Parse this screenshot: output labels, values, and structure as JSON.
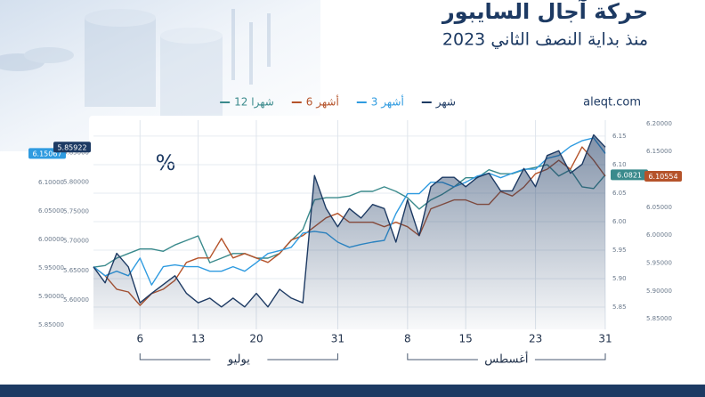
{
  "chart_data": {
    "type": "line",
    "title": "حركة آجال السايبور",
    "subtitle": "منذ بداية النصف الثاني 2023",
    "source": "aleqt.com",
    "unit_label": "%",
    "month_labels": [
      "يوليو",
      "أغسطس"
    ],
    "categories": [
      null,
      null,
      null,
      null,
      "6",
      null,
      null,
      null,
      null,
      "13",
      null,
      null,
      null,
      null,
      "20",
      null,
      null,
      null,
      null,
      null,
      null,
      "31",
      null,
      null,
      null,
      null,
      null,
      "8",
      null,
      null,
      null,
      null,
      "15",
      null,
      null,
      null,
      null,
      null,
      "23",
      null,
      null,
      null,
      null,
      null,
      "31"
    ],
    "axes": {
      "left_outer": {
        "ylim": [
          5.842,
          6.209
        ],
        "yticks": [
          {
            "value": 5.85,
            "label": "5.85000"
          },
          {
            "value": 5.9,
            "label": "5.90000"
          },
          {
            "value": 5.95,
            "label": "5.95000"
          },
          {
            "value": 6.0,
            "label": "6.00000"
          },
          {
            "value": 6.05,
            "label": "6.05000"
          },
          {
            "value": 6.1,
            "label": "6.10000"
          }
        ]
      },
      "left_inner": {
        "ylim": [
          5.55,
          5.905
        ],
        "yticks": [
          {
            "value": 5.6,
            "label": "5.60000"
          },
          {
            "value": 5.65,
            "label": "5.65000"
          },
          {
            "value": 5.7,
            "label": "5.70000"
          },
          {
            "value": 5.75,
            "label": "5.75000"
          },
          {
            "value": 5.8,
            "label": "5.80000"
          },
          {
            "value": 5.85,
            "label": "5.85000"
          }
        ]
      },
      "right_inner": {
        "ylim": [
          5.811,
          6.178
        ],
        "yticks": [
          5.85,
          {
            "value": 5.9,
            "label": "5.90"
          },
          5.95,
          {
            "value": 6.0,
            "label": "6.00"
          },
          6.05,
          {
            "value": 6.1,
            "label": "6.10"
          },
          6.15
        ]
      },
      "right_outer": {
        "ylim": [
          5.831,
          6.206
        ],
        "yticks": [
          {
            "value": 5.85,
            "label": "5.85000"
          },
          {
            "value": 5.9,
            "label": "5.90000"
          },
          {
            "value": 5.95,
            "label": "5.95000"
          },
          {
            "value": 6.0,
            "label": "6.00000"
          },
          {
            "value": 6.05,
            "label": "6.05000"
          },
          {
            "value": 6.1,
            "label": "6.10000"
          },
          {
            "value": 6.15,
            "label": "6.15000"
          },
          {
            "value": 6.2,
            "label": "6.20000"
          }
        ]
      }
    },
    "series": [
      {
        "name": "12 شهرا",
        "color": "#3a8a8c",
        "axis": "right_inner",
        "values": [
          5.92,
          5.923,
          5.936,
          5.944,
          5.952,
          5.952,
          5.948,
          5.959,
          5.967,
          5.975,
          5.928,
          5.936,
          5.944,
          5.944,
          5.936,
          5.936,
          5.944,
          5.967,
          5.986,
          6.038,
          6.042,
          6.042,
          6.045,
          6.053,
          6.053,
          6.061,
          6.053,
          6.042,
          6.022,
          6.038,
          6.048,
          6.061,
          6.077,
          6.077,
          6.091,
          6.084,
          6.084,
          6.091,
          6.095,
          6.1,
          6.08,
          6.091,
          6.061,
          6.058,
          6.0821
        ]
      },
      {
        "name": "6 أشهر",
        "color": "#b5532a",
        "axis": "right_outer",
        "values": [
          5.943,
          5.927,
          5.903,
          5.898,
          5.874,
          5.895,
          5.903,
          5.919,
          5.951,
          5.959,
          5.959,
          5.994,
          5.959,
          5.967,
          5.959,
          5.951,
          5.967,
          5.991,
          5.999,
          6.015,
          6.031,
          6.039,
          6.023,
          6.023,
          6.023,
          6.015,
          6.023,
          6.015,
          5.999,
          6.047,
          6.055,
          6.063,
          6.063,
          6.055,
          6.055,
          6.078,
          6.07,
          6.086,
          6.11,
          6.118,
          6.134,
          6.118,
          6.158,
          6.134,
          6.10554
        ]
      },
      {
        "name": "3 أشهر",
        "color": "#2f9be0",
        "axis": "left_outer",
        "values": [
          5.952,
          5.936,
          5.944,
          5.936,
          5.967,
          5.92,
          5.952,
          5.955,
          5.952,
          5.952,
          5.944,
          5.944,
          5.952,
          5.944,
          5.959,
          5.975,
          5.98,
          5.986,
          6.011,
          6.014,
          6.011,
          5.995,
          5.986,
          5.991,
          5.995,
          5.998,
          6.045,
          6.08,
          6.08,
          6.1,
          6.1,
          6.092,
          6.1,
          6.111,
          6.116,
          6.108,
          6.116,
          6.123,
          6.123,
          6.142,
          6.147,
          6.163,
          6.173,
          6.178,
          6.15067
        ]
      },
      {
        "name": "شهر",
        "color": "#1d3a63",
        "axis": "left_inner",
        "area": true,
        "values": [
          5.656,
          5.629,
          5.679,
          5.656,
          5.595,
          5.611,
          5.626,
          5.641,
          5.611,
          5.595,
          5.603,
          5.588,
          5.603,
          5.588,
          5.611,
          5.588,
          5.618,
          5.603,
          5.595,
          5.811,
          5.755,
          5.724,
          5.755,
          5.739,
          5.762,
          5.755,
          5.698,
          5.77,
          5.709,
          5.792,
          5.808,
          5.808,
          5.792,
          5.808,
          5.815,
          5.785,
          5.785,
          5.823,
          5.792,
          5.845,
          5.853,
          5.815,
          5.83,
          5.88,
          5.85922
        ]
      }
    ],
    "legend_order": [
      3,
      2,
      1,
      0
    ]
  }
}
